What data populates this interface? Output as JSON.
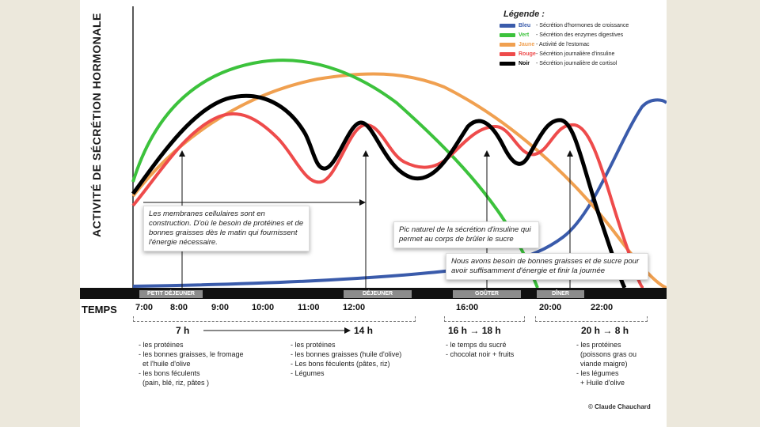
{
  "y_axis_label": "ACTIVITÉ DE SÉCRÉTION HORMONALE",
  "legend": {
    "title": "Légende :",
    "items": [
      {
        "name": "Bleu",
        "color": "#3a5bab",
        "desc": "- Sécrétion d'hormones de croissance"
      },
      {
        "name": "Vert",
        "color": "#3cc23c",
        "desc": "- Sécrétion des enzymes digestives"
      },
      {
        "name": "Jaune",
        "color": "#f0a050",
        "desc": "- Activité de l'estomac"
      },
      {
        "name": "Rouge",
        "color": "#ee4b4b",
        "desc": "- Sécrétion journalière d'insuline"
      },
      {
        "name": "Noir",
        "color": "#000000",
        "desc": "- Sécrétion journalière de cortisol"
      }
    ]
  },
  "notes": {
    "membranes": "Les membranes cellulaires sont en construction. D'où le besoin de protéines et de bonnes graisses dès le matin qui fournissent l'énergie nécessaire.",
    "insulin_peak": "Pic naturel de la sécrétion d'insuline qui permet au corps de brûler le sucre",
    "evening": "Nous avons besoin de bonnes graisses et de sucre pour avoir suffisamment d'énergie et finir la journée"
  },
  "meals": [
    "PETIT DÉJEUNER",
    "DÉJEUNER",
    "GOÛTER",
    "DÎNER"
  ],
  "time_label": "TEMPS",
  "times": [
    "7:00",
    "8:00",
    "9:00",
    "10:00",
    "11:00",
    "12:00",
    "16:00",
    "20:00",
    "22:00"
  ],
  "periods": [
    {
      "start": "7 h",
      "arrow": "→",
      "end": "14 h",
      "foods": [
        "- les protéines",
        "- les bonnes graisses, le fromage",
        "  et l'huile d'olive",
        "- les bons féculents",
        "  (pain, blé, riz, pâtes )"
      ]
    },
    {
      "foods": [
        "- les protéines",
        "- les bonnes graisses (huile d'olive)",
        "- Les bons féculents (pâtes, riz)",
        "- Légumes"
      ]
    },
    {
      "start": "16 h",
      "arrow": "→",
      "end": "18 h",
      "foods": [
        "- le temps du sucré",
        "- chocolat noir + fruits"
      ]
    },
    {
      "start": "20 h",
      "arrow": "→",
      "end": "8 h",
      "foods": [
        "- les protéines",
        "  (poissons gras ou",
        "  viande maigre)",
        "- les légumes",
        "  + Huile d'olive"
      ]
    }
  ],
  "credit": "© Claude Chauchard"
}
